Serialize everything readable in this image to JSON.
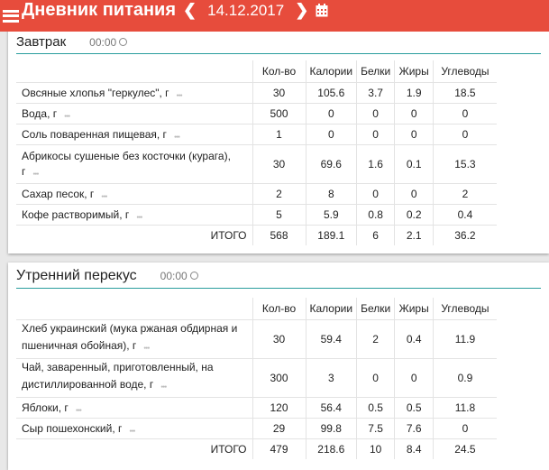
{
  "header": {
    "title": "Дневник питания",
    "date": "14.12.2017",
    "menu_icon": "hamburger-icon",
    "prev_icon": "chevron-left-icon",
    "next_icon": "chevron-right-icon",
    "calendar_icon": "calendar-icon",
    "color": "#e74c3c"
  },
  "columns": [
    "Кол-во",
    "Калории",
    "Белки",
    "Жиры",
    "Углеводы"
  ],
  "meals": [
    {
      "name": "Завтрак",
      "time": "00:00",
      "items": [
        {
          "name": "Овсяные хлопья \"геркулес\", г",
          "values": [
            "30",
            "105.6",
            "3.7",
            "1.9",
            "18.5"
          ]
        },
        {
          "name": "Вода, г",
          "values": [
            "500",
            "0",
            "0",
            "0",
            "0"
          ]
        },
        {
          "name": "Соль поваренная пищевая, г",
          "values": [
            "1",
            "0",
            "0",
            "0",
            "0"
          ]
        },
        {
          "name": "Абрикосы сушеные без косточки (курага), г",
          "values": [
            "30",
            "69.6",
            "1.6",
            "0.1",
            "15.3"
          ]
        },
        {
          "name": "Сахар песок, г",
          "values": [
            "2",
            "8",
            "0",
            "0",
            "2"
          ]
        },
        {
          "name": "Кофе растворимый, г",
          "values": [
            "5",
            "5.9",
            "0.8",
            "0.2",
            "0.4"
          ]
        }
      ],
      "total_label": "ИТОГО",
      "total": [
        "568",
        "189.1",
        "6",
        "2.1",
        "36.2"
      ]
    },
    {
      "name": "Утренний перекус",
      "time": "00:00",
      "items": [
        {
          "name": "Хлеб украинский (мука ржаная обдирная и пшеничная обойная), г",
          "values": [
            "30",
            "59.4",
            "2",
            "0.4",
            "11.9"
          ]
        },
        {
          "name": "Чай, заваренный, приготовленный, на дистиллированной воде, г",
          "values": [
            "300",
            "3",
            "0",
            "0",
            "0.9"
          ]
        },
        {
          "name": "Яблоки, г",
          "values": [
            "120",
            "56.4",
            "0.5",
            "0.5",
            "11.8"
          ]
        },
        {
          "name": "Сыр пошехонский, г",
          "values": [
            "29",
            "99.8",
            "7.5",
            "7.6",
            "0"
          ]
        }
      ],
      "total_label": "ИТОГО",
      "total": [
        "479",
        "218.6",
        "10",
        "8.4",
        "24.5"
      ]
    }
  ]
}
